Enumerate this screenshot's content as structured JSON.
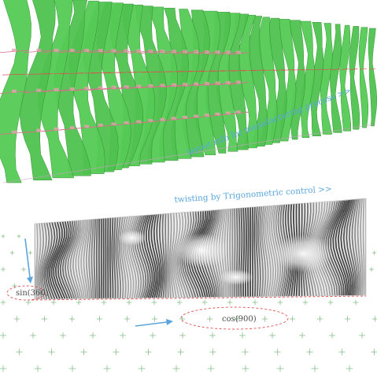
{
  "captions": {
    "layout": "layout info for manufacturing process >>",
    "twisting": "twisting by Trigonometric control >>"
  },
  "labels": {
    "sin": "sin(360)",
    "cos": "cos(900)"
  },
  "colors": {
    "ribbon": "#55cc55",
    "ribbon_edge": "#2f8f2f",
    "accent_blue": "#5aa6dc",
    "dash_red": "#e05050",
    "grid_green": "#7ab87a"
  }
}
